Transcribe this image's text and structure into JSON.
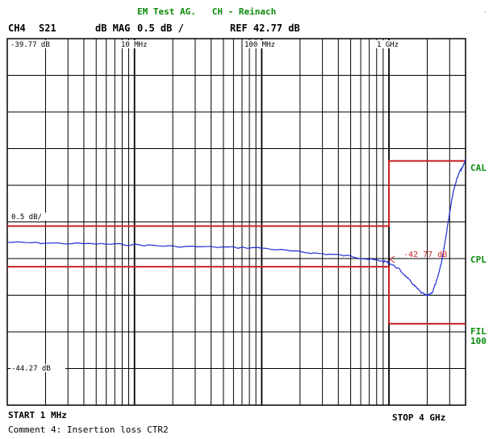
{
  "header": {
    "title": "EM Test AG.   CH - Reinach",
    "corner_mark": "-",
    "channel": "CH4",
    "param": "S21",
    "format": "dB MAG",
    "scale": "0.5 dB /",
    "ref": "REF 42.77 dB"
  },
  "plot_labels": {
    "top_left": "-39.77 dB",
    "mid_left": "0.5 dB/",
    "bottom_left": "-44.27 dB",
    "freq_10": "10 MHz",
    "freq_100": "100 MHz",
    "freq_1000": "1 GHz",
    "marker": "-42 77 dB"
  },
  "side_labels": {
    "cal": "CAL",
    "cpl": "CPL",
    "fil": "FIL",
    "fil2": "100"
  },
  "footer": {
    "start": "START 1 MHz",
    "stop": "STOP 4 GHz",
    "comment": "Comment 4: Insertion loss CTR2"
  },
  "colors": {
    "trace": "#1f2fd6",
    "limit": "#cc2222",
    "grid": "#000000",
    "annotation": "#0a8a0a"
  },
  "chart_data": {
    "type": "line",
    "title": "",
    "xlabel": "",
    "ylabel": "",
    "x_scale": "log",
    "x_unit": "MHz",
    "xlim": [
      1,
      4000
    ],
    "ylim": [
      -44.27,
      -39.77
    ],
    "series": [
      {
        "role": "trace",
        "x": [
          1,
          2,
          5,
          10,
          20,
          50,
          100,
          200,
          300,
          500,
          700,
          900,
          1000,
          1200,
          1400,
          1600,
          1800,
          2000,
          2200,
          2400,
          2600,
          2800,
          3000,
          3200,
          3400,
          3600,
          3800,
          4000
        ],
        "y": [
          -42.27,
          -42.28,
          -42.29,
          -42.3,
          -42.32,
          -42.33,
          -42.34,
          -42.39,
          -42.41,
          -42.44,
          -42.48,
          -42.5,
          -42.52,
          -42.6,
          -42.71,
          -42.81,
          -42.89,
          -42.93,
          -42.88,
          -42.72,
          -42.5,
          -42.2,
          -41.9,
          -41.65,
          -41.5,
          -41.4,
          -41.35,
          -41.25
        ]
      },
      {
        "role": "upper-limit",
        "x": [
          1,
          1000,
          1000,
          4000
        ],
        "y": [
          -42.07,
          -42.07,
          -41.27,
          -41.27
        ]
      },
      {
        "role": "lower-limit",
        "x": [
          1,
          1000,
          1000,
          4000
        ],
        "y": [
          -42.57,
          -42.57,
          -43.27,
          -43.27
        ]
      }
    ],
    "grid": true
  }
}
